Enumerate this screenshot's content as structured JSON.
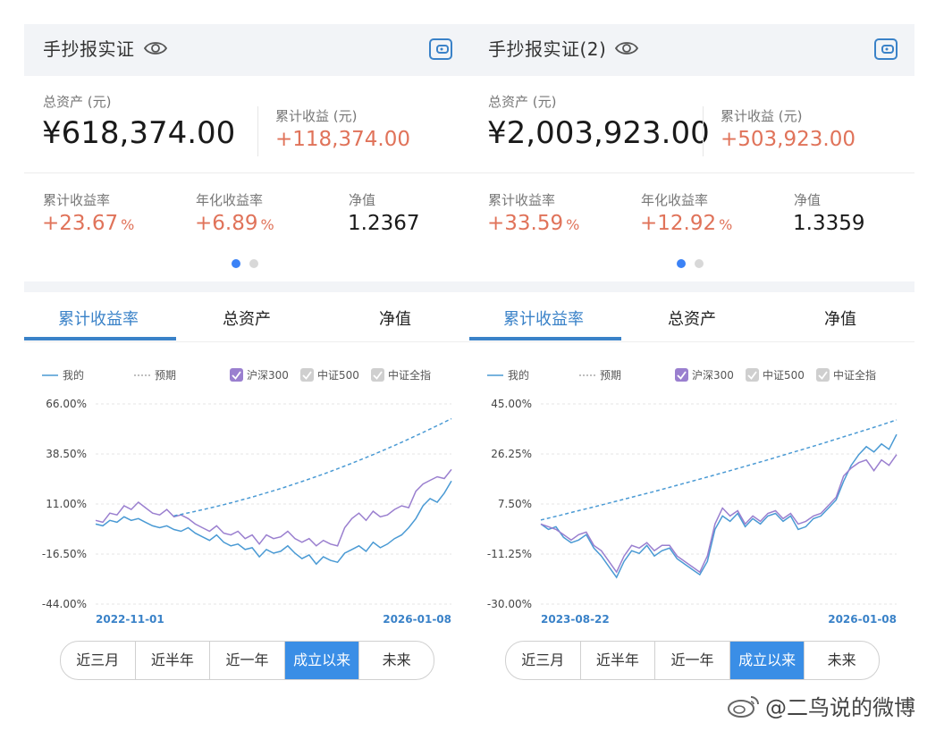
{
  "accounts": [
    {
      "title": "手抄报实证",
      "total_assets_label": "总资产 (元)",
      "total_assets": "¥618,374.00",
      "cum_profit_label": "累计收益 (元)",
      "cum_profit": "+118,374.00",
      "cum_rate_label": "累计收益率",
      "cum_rate": "+23.67",
      "annual_rate_label": "年化收益率",
      "annual_rate": "+6.89",
      "pct": "%",
      "nav_label": "净值",
      "nav": "1.2367",
      "tabs": [
        "累计收益率",
        "总资产",
        "净值"
      ],
      "legend": {
        "mine": "我的",
        "expected": "预期",
        "hs300": "沪深300",
        "zz500": "中证500",
        "zzqz": "中证全指"
      },
      "range_buttons": [
        "近三月",
        "近半年",
        "近一年",
        "成立以来",
        "未来"
      ],
      "active_range": 3
    },
    {
      "title": "手抄报实证(2)",
      "total_assets_label": "总资产 (元)",
      "total_assets": "¥2,003,923.00",
      "cum_profit_label": "累计收益 (元)",
      "cum_profit": "+503,923.00",
      "cum_rate_label": "累计收益率",
      "cum_rate": "+33.59",
      "annual_rate_label": "年化收益率",
      "annual_rate": "+12.92",
      "pct": "%",
      "nav_label": "净值",
      "nav": "1.3359",
      "tabs": [
        "累计收益率",
        "总资产",
        "净值"
      ],
      "legend": {
        "mine": "我的",
        "expected": "预期",
        "hs300": "沪深300",
        "zz500": "中证500",
        "zzqz": "中证全指"
      },
      "range_buttons": [
        "近三月",
        "近半年",
        "近一年",
        "成立以来",
        "未来"
      ],
      "active_range": 3
    }
  ],
  "watermark": "@二鸟说的微博",
  "colors": {
    "accent": "#3a82c8",
    "mine_line": "#4a9ad4",
    "hs300_line": "#9a7fcf",
    "expected_line": "#4a9ad4",
    "positive": "#e0735a",
    "active_button": "#3a8ee6"
  },
  "chart_data": [
    {
      "type": "line",
      "x_start": "2022-11-01",
      "x_end": "2026-01-08",
      "y_ticks": [
        "66.00%",
        "38.50%",
        "11.00%",
        "-16.50%",
        "-44.00%"
      ],
      "ylim": [
        -44,
        66
      ],
      "series": [
        {
          "name": "我的",
          "style": "solid",
          "values": [
            0,
            -1,
            2,
            1,
            4,
            2,
            3,
            1,
            -1,
            -2,
            -1,
            -3,
            -4,
            -2,
            -5,
            -7,
            -9,
            -6,
            -10,
            -12,
            -11,
            -14,
            -13,
            -18,
            -14,
            -16,
            -15,
            -12,
            -16,
            -19,
            -17,
            -22,
            -18,
            -20,
            -21,
            -16,
            -14,
            -12,
            -15,
            -10,
            -13,
            -11,
            -8,
            -6,
            -2,
            3,
            10,
            14,
            12,
            17,
            23.67
          ]
        },
        {
          "name": "沪深300",
          "style": "solid",
          "values": [
            2,
            1,
            6,
            5,
            10,
            8,
            12,
            9,
            6,
            5,
            8,
            4,
            5,
            3,
            0,
            -2,
            -4,
            -1,
            -5,
            -6,
            -4,
            -8,
            -6,
            -11,
            -6,
            -8,
            -7,
            -4,
            -8,
            -10,
            -8,
            -12,
            -9,
            -11,
            -12,
            -2,
            3,
            6,
            2,
            7,
            4,
            5,
            8,
            10,
            9,
            18,
            22,
            24,
            26,
            25,
            30
          ]
        },
        {
          "name": "预期",
          "style": "dashed",
          "values": [
            4.5,
            5.6,
            6.8,
            8,
            9.3,
            10.6,
            12,
            13.5,
            15,
            16.6,
            18.2,
            19.9,
            21.7,
            23.5,
            25.4,
            27.3,
            29.3,
            31.4,
            33.5,
            35.7,
            37.9,
            40.2,
            42.6,
            45,
            47.5,
            50,
            52.6,
            55.2,
            57.9
          ]
        }
      ]
    },
    {
      "type": "line",
      "x_start": "2023-08-22",
      "x_end": "2026-01-08",
      "y_ticks": [
        "45.00%",
        "26.25%",
        "7.50%",
        "-11.25%",
        "-30.00%"
      ],
      "ylim": [
        -30,
        45
      ],
      "series": [
        {
          "name": "我的",
          "style": "solid",
          "values": [
            0,
            -2,
            -1,
            -5,
            -7,
            -6,
            -4,
            -9,
            -12,
            -16,
            -20,
            -14,
            -10,
            -11,
            -8,
            -12,
            -10,
            -9,
            -13,
            -15,
            -17,
            -19,
            -14,
            -2,
            3,
            1,
            4,
            -1,
            2,
            0,
            3,
            4,
            1,
            3,
            -2,
            -1,
            2,
            3,
            6,
            9,
            16,
            22,
            26,
            29,
            27,
            30,
            28,
            33.59
          ]
        },
        {
          "name": "沪深300",
          "style": "solid",
          "values": [
            0,
            -1,
            -2,
            -4,
            -6,
            -4,
            -3,
            -8,
            -10,
            -14,
            -18,
            -12,
            -8,
            -9,
            -7,
            -10,
            -8,
            -8,
            -12,
            -14,
            -16,
            -18,
            -12,
            0,
            6,
            3,
            5,
            0,
            3,
            1,
            4,
            5,
            2,
            4,
            0,
            1,
            3,
            4,
            7,
            10,
            18,
            21,
            23,
            24,
            20,
            24,
            22,
            26
          ]
        },
        {
          "name": "预期",
          "style": "dashed",
          "values": [
            1.5,
            3.2,
            5,
            6.7,
            8.5,
            10.3,
            12.1,
            14,
            15.9,
            17.8,
            19.8,
            21.8,
            23.8,
            25.9,
            28,
            30.1,
            32.3,
            34.5,
            36.7,
            39
          ]
        }
      ]
    }
  ]
}
